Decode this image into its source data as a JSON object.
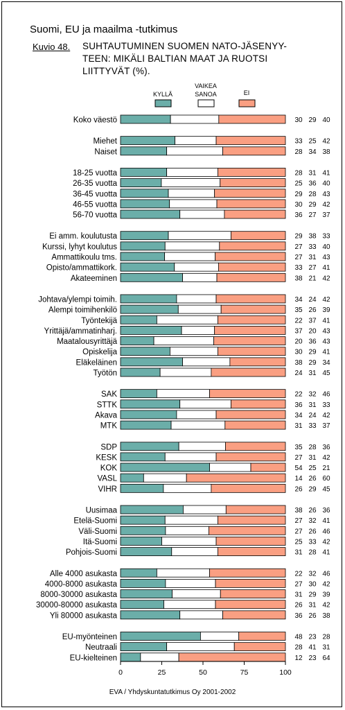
{
  "header": {
    "title": "Suomi, EU ja maailma -tutkimus",
    "figure_label": "Kuvio 48.",
    "chart_title_lines": [
      "SUHTAUTUMINEN SUOMEN NATO-JÄSENYY-",
      "TEEN: MIKÄLI BALTIAN MAAT JA RUOTSI",
      "LIITTYVÄT (%)."
    ]
  },
  "footer": "EVA / Yhdyskuntatutkimus Oy 2001-2002",
  "chart_data": {
    "type": "bar",
    "stacked": true,
    "orientation": "horizontal",
    "categories": [
      "Koko väestö",
      "Miehet",
      "Naiset",
      "18-25 vuotta",
      "26-35 vuotta",
      "36-45 vuotta",
      "46-55 vuotta",
      "56-70 vuotta",
      "Ei amm. koulutusta",
      "Kurssi, lyhyt koulutus",
      "Ammattikoulu tms.",
      "Opisto/ammattikork.",
      "Akateeminen",
      "Johtava/ylempi toimih.",
      "Alempi toimihenkilö",
      "Työntekijä",
      "Yrittäjä/ammatinharj.",
      "Maatalousyrittäjä",
      "Opiskelija",
      "Eläkeläinen",
      "Työtön",
      "SAK",
      "STTK",
      "Akava",
      "MTK",
      "SDP",
      "KESK",
      "KOK",
      "VASL",
      "VIHR",
      "Uusimaa",
      "Etelä-Suomi",
      "Väli-Suomi",
      "Itä-Suomi",
      "Pohjois-Suomi",
      "Alle 4000 asukasta",
      "4000-8000 asukasta",
      "8000-30000 asukasta",
      "30000-80000 asukasta",
      "Yli 80000 asukasta",
      "EU-myönteinen",
      "Neutraali",
      "EU-kielteinen"
    ],
    "groups": [
      [
        0
      ],
      [
        1,
        2
      ],
      [
        3,
        4,
        5,
        6,
        7
      ],
      [
        8,
        9,
        10,
        11,
        12
      ],
      [
        13,
        14,
        15,
        16,
        17,
        18,
        19,
        20
      ],
      [
        21,
        22,
        23,
        24
      ],
      [
        25,
        26,
        27,
        28,
        29
      ],
      [
        30,
        31,
        32,
        33,
        34
      ],
      [
        35,
        36,
        37,
        38,
        39
      ],
      [
        40,
        41,
        42
      ]
    ],
    "series": [
      {
        "name": "KYLLÄ",
        "color": "#6BAEA9",
        "values": [
          30,
          33,
          28,
          28,
          25,
          29,
          30,
          36,
          29,
          27,
          27,
          33,
          38,
          34,
          35,
          22,
          37,
          20,
          30,
          38,
          24,
          22,
          36,
          34,
          31,
          35,
          27,
          54,
          14,
          26,
          38,
          27,
          27,
          25,
          31,
          22,
          27,
          31,
          26,
          36,
          48,
          28,
          12
        ]
      },
      {
        "name": "VAIKEA SANOA",
        "color": "#FFFFFF",
        "values": [
          29,
          25,
          34,
          31,
          36,
          28,
          29,
          27,
          38,
          33,
          31,
          27,
          21,
          24,
          26,
          37,
          20,
          36,
          29,
          29,
          31,
          32,
          31,
          24,
          33,
          28,
          31,
          25,
          26,
          29,
          26,
          32,
          26,
          33,
          28,
          32,
          30,
          29,
          31,
          26,
          23,
          41,
          23
        ]
      },
      {
        "name": "EI",
        "color": "#FA9F82",
        "values": [
          40,
          42,
          38,
          41,
          40,
          43,
          42,
          37,
          33,
          40,
          43,
          41,
          42,
          42,
          39,
          41,
          43,
          43,
          41,
          34,
          45,
          46,
          33,
          42,
          37,
          36,
          42,
          21,
          60,
          45,
          36,
          41,
          46,
          42,
          41,
          46,
          42,
          39,
          42,
          38,
          28,
          31,
          64
        ]
      }
    ],
    "legend_labels": [
      "KYLLÄ",
      "VAIKEA",
      "SANOA",
      "EI"
    ],
    "x_ticks": [
      0,
      25,
      50,
      75,
      100
    ],
    "xlim": [
      0,
      100
    ],
    "xlabel": "",
    "ylabel": "",
    "grid": false,
    "legend_position": "top"
  }
}
